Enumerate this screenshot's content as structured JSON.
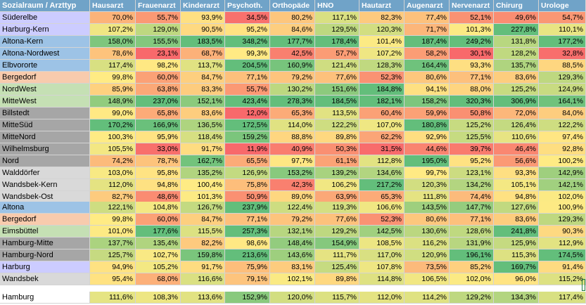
{
  "headers": [
    "Sozialraum / Arzttyp",
    "Hausarzt",
    "Frauenarzt",
    "Kinderarzt",
    "Psychoth.",
    "Orthopäde",
    "HNO",
    "Hautarzt",
    "Augenarzt",
    "Nervenarzt",
    "Chirurg",
    "Urologe"
  ],
  "colors": {
    "header": "#70a3c8",
    "scale": {
      "low": "#f8696b",
      "mid": "#ffeb84",
      "high": "#63be7b"
    },
    "name_purple": "#ccccff",
    "name_blue": "#9dc3e6",
    "name_orange": "#f8cbad",
    "name_green": "#c5e0b4",
    "name_gray": "#a6a6a6",
    "name_lightgray": "#d9d9d9"
  },
  "section1": [
    {
      "name": "Süderelbe",
      "color": "name_purple",
      "values": [
        "70,0%",
        "55,7%",
        "93,9%",
        "34,5%",
        "80,2%",
        "117,1%",
        "82,3%",
        "77,4%",
        "52,1%",
        "49,6%",
        "54,7%"
      ]
    },
    {
      "name": "Harburg-Kern",
      "color": "name_purple",
      "values": [
        "107,2%",
        "129,0%",
        "90,5%",
        "95,2%",
        "84,6%",
        "129,5%",
        "120,3%",
        "71,7%",
        "101,3%",
        "227,8%",
        "110,1%"
      ]
    },
    {
      "name": "Altona-Kern",
      "color": "name_blue",
      "values": [
        "158,0%",
        "155,5%",
        "183,5%",
        "348,2%",
        "177,7%",
        "178,4%",
        "101,4%",
        "187,4%",
        "249,2%",
        "131,8%",
        "177,2%"
      ]
    },
    {
      "name": "Altona-Nordwest",
      "color": "name_blue",
      "values": [
        "78,6%",
        "23,1%",
        "68,7%",
        "99,3%",
        "42,5%",
        "57,7%",
        "107,2%",
        "58,2%",
        "30,1%",
        "128,2%",
        "32,8%"
      ]
    },
    {
      "name": "Elbvororte",
      "color": "name_blue",
      "values": [
        "117,4%",
        "98,2%",
        "113,7%",
        "204,5%",
        "160,9%",
        "121,4%",
        "128,3%",
        "164,4%",
        "93,3%",
        "135,7%",
        "88,5%"
      ]
    },
    {
      "name": "Bergedorf",
      "color": "name_orange",
      "values": [
        "99,8%",
        "60,0%",
        "84,7%",
        "77,1%",
        "79,2%",
        "77,6%",
        "52,3%",
        "80,6%",
        "77,1%",
        "83,6%",
        "129,3%"
      ]
    },
    {
      "name": "NordWest",
      "color": "name_green",
      "values": [
        "85,9%",
        "63,8%",
        "83,3%",
        "55,7%",
        "130,2%",
        "151,6%",
        "184,8%",
        "94,1%",
        "88,0%",
        "125,2%",
        "124,9%"
      ]
    },
    {
      "name": "MitteWest",
      "color": "name_green",
      "values": [
        "148,9%",
        "237,0%",
        "152,1%",
        "423,4%",
        "278,3%",
        "184,5%",
        "182,1%",
        "158,2%",
        "320,3%",
        "306,9%",
        "164,1%"
      ]
    },
    {
      "name": "Billstedt",
      "color": "name_gray",
      "values": [
        "99,0%",
        "65,8%",
        "83,6%",
        "12,0%",
        "65,3%",
        "113,5%",
        "60,4%",
        "59,9%",
        "50,8%",
        "72,0%",
        "84,0%"
      ]
    },
    {
      "name": "MitteSüd",
      "color": "name_gray",
      "values": [
        "170,2%",
        "166,9%",
        "136,5%",
        "172,5%",
        "114,0%",
        "122,2%",
        "107,0%",
        "180,8%",
        "125,2%",
        "126,4%",
        "122,2%"
      ]
    },
    {
      "name": "MitteNord",
      "color": "name_gray",
      "values": [
        "100,3%",
        "95,9%",
        "118,4%",
        "159,2%",
        "88,8%",
        "89,8%",
        "62,2%",
        "92,9%",
        "125,5%",
        "110,6%",
        "97,4%"
      ]
    },
    {
      "name": "Wilhelmsburg",
      "color": "name_gray",
      "values": [
        "105,5%",
        "33,0%",
        "91,7%",
        "11,9%",
        "40,9%",
        "50,3%",
        "31,5%",
        "44,6%",
        "39,7%",
        "46,4%",
        "92,8%"
      ]
    },
    {
      "name": "Nord",
      "color": "name_gray",
      "values": [
        "74,2%",
        "78,7%",
        "162,7%",
        "65,5%",
        "97,7%",
        "61,1%",
        "112,8%",
        "195,0%",
        "95,2%",
        "56,6%",
        "100,2%"
      ]
    },
    {
      "name": "Walddörfer",
      "color": "name_lightgray",
      "values": [
        "103,0%",
        "95,8%",
        "135,2%",
        "126,9%",
        "153,2%",
        "139,2%",
        "134,6%",
        "99,7%",
        "123,1%",
        "93,3%",
        "142,9%"
      ]
    },
    {
      "name": "Wandsbek-Kern",
      "color": "name_lightgray",
      "values": [
        "112,0%",
        "94,8%",
        "100,4%",
        "75,8%",
        "42,3%",
        "106,2%",
        "217,2%",
        "120,3%",
        "134,2%",
        "105,1%",
        "142,1%"
      ]
    },
    {
      "name": "Wandsbek-Ost",
      "color": "name_lightgray",
      "values": [
        "82,7%",
        "48,6%",
        "101,3%",
        "50,9%",
        "89,0%",
        "63,9%",
        "65,3%",
        "111,8%",
        "74,4%",
        "94,8%",
        "102,0%"
      ]
    }
  ],
  "section2": [
    {
      "name": "Altona",
      "color": "name_blue",
      "values": [
        "122,1%",
        "104,8%",
        "126,7%",
        "237,9%",
        "122,4%",
        "119,3%",
        "106,6%",
        "143,5%",
        "147,7%",
        "127,6%",
        "100,9%"
      ]
    },
    {
      "name": "Bergedorf",
      "color": "name_orange",
      "values": [
        "99,8%",
        "60,0%",
        "84,7%",
        "77,1%",
        "79,2%",
        "77,6%",
        "52,3%",
        "80,6%",
        "77,1%",
        "83,6%",
        "129,3%"
      ]
    },
    {
      "name": "Eimsbüttel",
      "color": "name_green",
      "values": [
        "101,0%",
        "177,6%",
        "115,5%",
        "257,3%",
        "132,1%",
        "129,2%",
        "142,5%",
        "130,6%",
        "128,6%",
        "241,8%",
        "90,3%"
      ]
    },
    {
      "name": "Hamburg-Mitte",
      "color": "name_gray",
      "values": [
        "137,7%",
        "135,4%",
        "82,2%",
        "98,6%",
        "148,4%",
        "154,9%",
        "108,5%",
        "116,2%",
        "131,9%",
        "125,9%",
        "112,9%"
      ]
    },
    {
      "name": "Hamburg-Nord",
      "color": "name_gray",
      "values": [
        "125,7%",
        "102,7%",
        "159,8%",
        "213,6%",
        "143,6%",
        "111,7%",
        "117,0%",
        "120,9%",
        "196,1%",
        "115,3%",
        "174,5%"
      ]
    },
    {
      "name": "Harburg",
      "color": "name_purple",
      "values": [
        "94,9%",
        "105,2%",
        "91,7%",
        "75,9%",
        "83,1%",
        "125,4%",
        "107,8%",
        "73,5%",
        "85,2%",
        "169,7%",
        "91,4%"
      ]
    },
    {
      "name": "Wandsbek",
      "color": "name_lightgray",
      "values": [
        "95,4%",
        "68,0%",
        "116,6%",
        "79,1%",
        "102,1%",
        "89,8%",
        "114,8%",
        "106,5%",
        "102,0%",
        "96,0%",
        "115,2%"
      ]
    }
  ],
  "total": {
    "name": "Hamburg",
    "values": [
      "111,6%",
      "108,3%",
      "113,6%",
      "152,9%",
      "120,0%",
      "115,7%",
      "112,0%",
      "114,2%",
      "129,2%",
      "134,3%",
      "117,4%"
    ]
  }
}
